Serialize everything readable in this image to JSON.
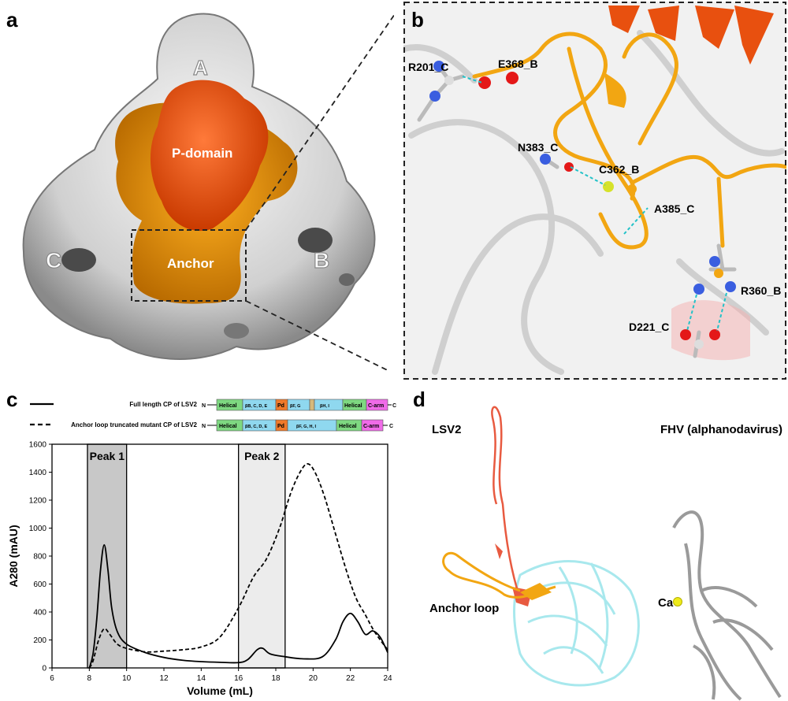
{
  "panels": {
    "a": {
      "letter": "a",
      "labels": {
        "subunit_a": "A",
        "subunit_b": "B",
        "subunit_c": "C",
        "p_domain": "P-domain",
        "anchor": "Anchor"
      }
    },
    "b": {
      "letter": "b",
      "residues": [
        "R201_C",
        "E368_B",
        "N383_C",
        "C362_B",
        "A385_C",
        "R360_B",
        "D221_C"
      ]
    },
    "c": {
      "letter": "c",
      "legend": {
        "full": "Full length CP of LSV2",
        "mutant": "Anchor loop truncated mutant CP of LSV2"
      },
      "domain_bars": {
        "full": [
          "Helical",
          "βB, C, D, E",
          "Pd",
          "βF, G",
          "βH, I",
          "Helical",
          "C-arm"
        ],
        "mutant": [
          "Helical",
          "βB, C, D, E",
          "Pd",
          "βF, G, H, I",
          "Helical",
          "C-arm"
        ],
        "n_label": "N",
        "c_label": "C"
      },
      "peaks": [
        "Peak 1",
        "Peak 2"
      ]
    },
    "d": {
      "letter": "d",
      "left_title": "LSV2",
      "right_title": "FHV (alphanodavirus)",
      "anchor_label": "Anchor loop",
      "ca_label": "Ca"
    }
  },
  "chart_data": {
    "type": "line",
    "xlabel": "Volume (mL)",
    "ylabel": "A280 (mAU)",
    "xlim": [
      6,
      24
    ],
    "ylim": [
      0,
      1600
    ],
    "xticks": [
      6,
      8,
      10,
      12,
      14,
      16,
      18,
      20,
      22,
      24
    ],
    "yticks": [
      0,
      200,
      400,
      600,
      800,
      1000,
      1200,
      1400,
      1600
    ],
    "shaded_regions": [
      {
        "name": "Peak 1",
        "range": [
          7.9,
          10.0
        ],
        "color": "#c8c8c8"
      },
      {
        "name": "Peak 2",
        "range": [
          16.0,
          18.5
        ],
        "color": "#ececec"
      }
    ],
    "series": [
      {
        "name": "Full length CP of LSV2",
        "style": "solid",
        "points": [
          [
            8,
            0
          ],
          [
            8.2,
            100
          ],
          [
            8.4,
            350
          ],
          [
            8.6,
            700
          ],
          [
            8.8,
            880
          ],
          [
            9.0,
            700
          ],
          [
            9.2,
            430
          ],
          [
            9.5,
            260
          ],
          [
            10,
            170
          ],
          [
            11,
            110
          ],
          [
            12,
            75
          ],
          [
            13,
            55
          ],
          [
            14,
            45
          ],
          [
            15,
            40
          ],
          [
            16,
            38
          ],
          [
            16.5,
            60
          ],
          [
            17,
            130
          ],
          [
            17.3,
            140
          ],
          [
            17.7,
            100
          ],
          [
            18.5,
            80
          ],
          [
            19.5,
            65
          ],
          [
            20.5,
            80
          ],
          [
            21.2,
            200
          ],
          [
            21.6,
            330
          ],
          [
            22,
            390
          ],
          [
            22.4,
            330
          ],
          [
            22.8,
            240
          ],
          [
            23.2,
            265
          ],
          [
            23.6,
            220
          ],
          [
            24,
            110
          ]
        ]
      },
      {
        "name": "Anchor loop truncated mutant CP of LSV2",
        "style": "dashed",
        "points": [
          [
            8,
            0
          ],
          [
            8.2,
            50
          ],
          [
            8.5,
            200
          ],
          [
            8.8,
            280
          ],
          [
            9.1,
            240
          ],
          [
            9.5,
            170
          ],
          [
            10,
            140
          ],
          [
            11,
            115
          ],
          [
            12,
            120
          ],
          [
            13,
            130
          ],
          [
            14,
            150
          ],
          [
            15,
            220
          ],
          [
            16,
            430
          ],
          [
            16.8,
            650
          ],
          [
            17.5,
            780
          ],
          [
            18.2,
            1000
          ],
          [
            18.8,
            1250
          ],
          [
            19.3,
            1400
          ],
          [
            19.7,
            1460
          ],
          [
            20.1,
            1400
          ],
          [
            20.6,
            1230
          ],
          [
            21.2,
            960
          ],
          [
            21.8,
            690
          ],
          [
            22.3,
            500
          ],
          [
            22.8,
            380
          ],
          [
            23.2,
            280
          ],
          [
            23.6,
            200
          ],
          [
            24,
            130
          ]
        ]
      }
    ]
  }
}
